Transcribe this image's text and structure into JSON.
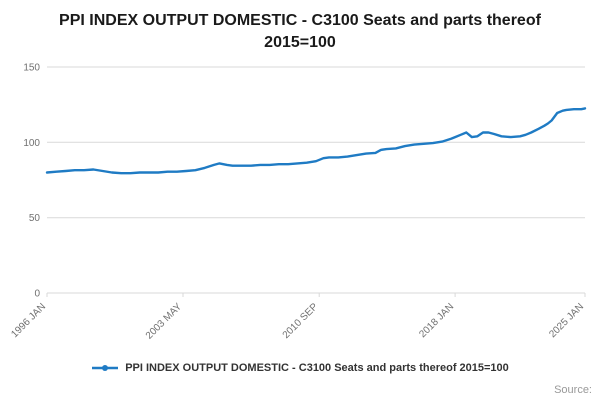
{
  "title": "PPI INDEX OUTPUT DOMESTIC - C3100 Seats and parts thereof 2015=100",
  "legend": {
    "label": "PPI INDEX OUTPUT DOMESTIC - C3100 Seats and parts thereof 2015=100"
  },
  "source": {
    "label": "Source:"
  },
  "chart_data": {
    "type": "line",
    "title": "PPI INDEX OUTPUT DOMESTIC - C3100 Seats and parts thereof 2015=100",
    "xlabel": "",
    "ylabel": "",
    "ylim": [
      0,
      150
    ],
    "xlim": [
      1996,
      2025
    ],
    "y_ticks": [
      0,
      50,
      100,
      150
    ],
    "x_ticks": [
      {
        "label": "1996 JAN",
        "x": 1996.0
      },
      {
        "label": "2003 MAY",
        "x": 2003.33
      },
      {
        "label": "2010 SEP",
        "x": 2010.67
      },
      {
        "label": "2018 JAN",
        "x": 2018.0
      },
      {
        "label": "2025 JAN",
        "x": 2025.0
      }
    ],
    "grid_on": true,
    "grid_color": "#d9d9d9",
    "tick_color": "#707070",
    "line_color": "#1f7bc4",
    "legend_position": "bottom",
    "series": [
      {
        "name": "PPI INDEX OUTPUT DOMESTIC - C3100 Seats and parts thereof 2015=100",
        "x": [
          1996.0,
          1996.5,
          1997.0,
          1997.5,
          1998.0,
          1998.5,
          1999.0,
          1999.5,
          2000.0,
          2000.5,
          2001.0,
          2001.5,
          2002.0,
          2002.5,
          2003.0,
          2003.5,
          2004.0,
          2004.5,
          2005.0,
          2005.3,
          2005.7,
          2006.0,
          2006.5,
          2007.0,
          2007.5,
          2008.0,
          2008.5,
          2009.0,
          2009.5,
          2010.0,
          2010.5,
          2010.9,
          2011.2,
          2011.7,
          2012.2,
          2012.7,
          2013.2,
          2013.7,
          2014.0,
          2014.3,
          2014.8,
          2015.3,
          2015.8,
          2016.3,
          2016.8,
          2017.3,
          2017.8,
          2018.0,
          2018.3,
          2018.6,
          2018.9,
          2019.2,
          2019.5,
          2019.8,
          2020.1,
          2020.5,
          2021.0,
          2021.5,
          2021.8,
          2022.1,
          2022.5,
          2022.8,
          2023.0,
          2023.2,
          2023.5,
          2023.8,
          2024.0,
          2024.4,
          2024.8,
          2025.0
        ],
        "values": [
          80,
          80.5,
          81,
          81.5,
          81.5,
          82,
          81,
          80,
          79.5,
          79.5,
          80,
          80,
          80,
          80.5,
          80.5,
          81,
          81.5,
          83,
          85,
          86,
          85,
          84.5,
          84.5,
          84.5,
          85,
          85,
          85.5,
          85.5,
          86,
          86.5,
          87.5,
          89.5,
          90,
          90,
          90.5,
          91.5,
          92.5,
          93,
          95,
          95.5,
          96,
          97.5,
          98.5,
          99,
          99.5,
          100.5,
          102.5,
          103.5,
          105,
          106.5,
          103.5,
          104,
          106.5,
          106.5,
          105.5,
          104,
          103.5,
          104,
          105,
          106.5,
          109,
          111,
          112.5,
          114.5,
          119.5,
          121,
          121.5,
          122,
          122,
          122.5
        ]
      }
    ]
  }
}
